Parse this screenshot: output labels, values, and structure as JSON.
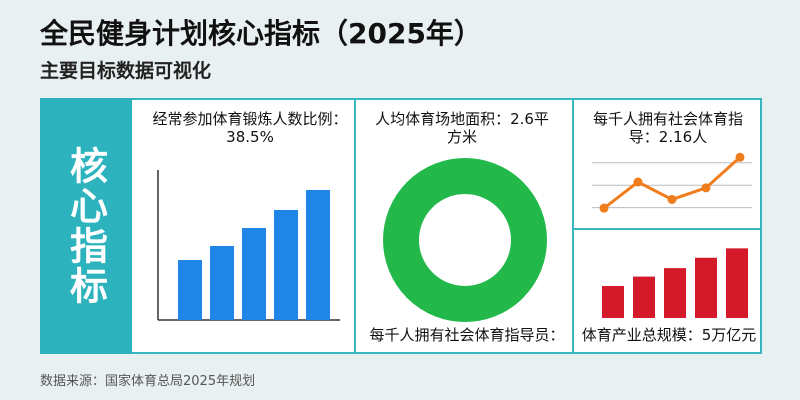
{
  "header": {
    "title": "全民健身计划核心指标（2025年）",
    "subtitle": "主要目标数据可视化"
  },
  "side": {
    "label": "核心指标"
  },
  "cards": {
    "exercise": {
      "title": "经常参加体育锻炼人数比例：38.5%"
    },
    "area": {
      "title": "人均体育场地面积：2.6平方米",
      "bottom_text": "每千人拥有社会体育指导员："
    },
    "instructors": {
      "title": "每千人拥有社会体育指导：2.16人"
    },
    "industry": {
      "title": "体育产业总规模：5万亿元"
    }
  },
  "footer": {
    "source": "数据来源：国家体育总局2025年规划"
  },
  "colors": {
    "accent": "#2db3be",
    "bar_blue": "#1f86e8",
    "donut_green": "#22b84a",
    "line_orange": "#f07d1c",
    "bar_red": "#d4192a"
  },
  "chart_data": [
    {
      "type": "bar",
      "title": "经常参加体育锻炼人数比例：38.5%",
      "values": [
        30,
        37,
        46,
        55,
        65
      ],
      "ylim": [
        0,
        75
      ],
      "grid": false
    },
    {
      "type": "pie",
      "title": "人均体育场地面积：2.6平方米",
      "values": [
        100
      ],
      "donut": true
    },
    {
      "type": "line",
      "title": "每千人拥有社会体育指导：2.16人",
      "values": [
        0.4,
        2.2,
        1.0,
        1.8,
        3.9
      ],
      "ylim": [
        0,
        4.4
      ],
      "grid": true
    },
    {
      "type": "bar",
      "title": "体育产业总规模：5万亿元",
      "values": [
        34,
        44,
        53,
        64,
        74
      ],
      "ylim": [
        0,
        85
      ],
      "grid": false
    }
  ]
}
